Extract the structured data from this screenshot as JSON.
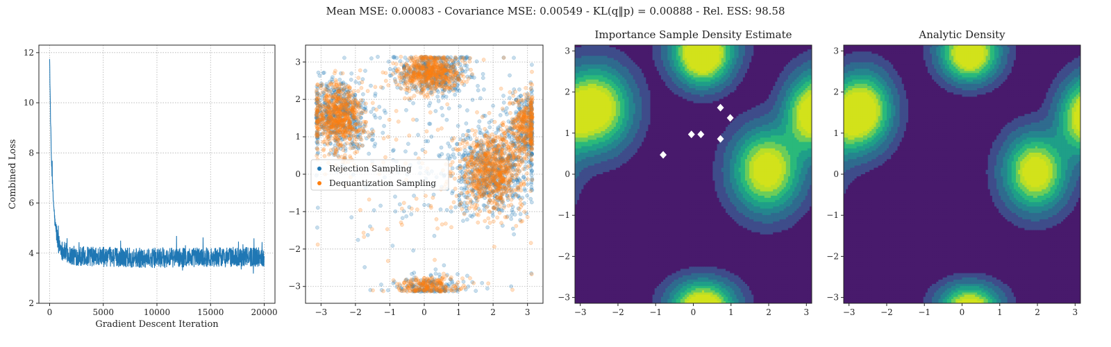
{
  "suptitle": "Mean MSE: 0.00083 - Covariance MSE: 0.00549 - KL(q‖p) = 0.00888 - Rel. ESS: 98.58",
  "colors": {
    "loss_line": "#1f77b4",
    "rejection": "#1f77b4",
    "dequantization": "#ff7f0e",
    "grid": "#b0b0b0",
    "density_levels": [
      "#481a6c",
      "#3e4c8a",
      "#2f6b8e",
      "#25858e",
      "#1f9f88",
      "#2ab97b",
      "#6ccd59",
      "#b8de29",
      "#d2e21b"
    ],
    "markers": "#ffffff"
  },
  "chart_data": [
    {
      "type": "line",
      "title": "",
      "xlabel": "Gradient Descent Iteration",
      "ylabel": "Combined Loss",
      "xlim": [
        -1000,
        21000
      ],
      "ylim": [
        2,
        12.3
      ],
      "xticks": [
        0,
        5000,
        10000,
        15000,
        20000
      ],
      "yticks": [
        2,
        4,
        6,
        8,
        10,
        12
      ],
      "grid": true,
      "series": [
        {
          "summary_points": [
            [
              0,
              11.8
            ],
            [
              60,
              10.0
            ],
            [
              150,
              8.0
            ],
            [
              300,
              6.4
            ],
            [
              500,
              5.2
            ],
            [
              800,
              4.4
            ],
            [
              1200,
              4.1
            ],
            [
              2000,
              3.9
            ],
            [
              5000,
              3.85
            ],
            [
              10000,
              3.8
            ],
            [
              15000,
              3.85
            ],
            [
              20000,
              3.85
            ]
          ],
          "noise_band": 0.8
        }
      ]
    },
    {
      "type": "scatter",
      "title": "",
      "xlim": [
        -3.45,
        3.45
      ],
      "ylim": [
        -3.45,
        3.45
      ],
      "xticks": [
        -3,
        -2,
        -1,
        0,
        1,
        2,
        3
      ],
      "yticks": [
        -3,
        -2,
        -1,
        0,
        1,
        2,
        3
      ],
      "grid": true,
      "legend_position": "center-left",
      "series": [
        {
          "name": "Rejection Sampling",
          "clusters": [
            {
              "center": [
                -2.45,
                1.6
              ],
              "spread": [
                0.45,
                0.5
              ],
              "weight": 0.24
            },
            {
              "center": [
                0.25,
                2.7
              ],
              "spread": [
                0.55,
                0.3
              ],
              "weight": 0.2
            },
            {
              "center": [
                1.95,
                0.1
              ],
              "spread": [
                0.55,
                0.6
              ],
              "weight": 0.28
            },
            {
              "center": [
                2.95,
                1.3
              ],
              "spread": [
                0.3,
                0.5
              ],
              "weight": 0.12
            },
            {
              "center": [
                0.1,
                -3.0
              ],
              "spread": [
                0.55,
                0.15
              ],
              "weight": 0.08
            },
            {
              "center": [
                0.0,
                0.5
              ],
              "spread": [
                1.6,
                1.6
              ],
              "weight": 0.08
            }
          ]
        },
        {
          "name": "Dequantization Sampling",
          "clusters": [
            {
              "center": [
                -2.5,
                1.5
              ],
              "spread": [
                0.35,
                0.45
              ],
              "weight": 0.26
            },
            {
              "center": [
                0.2,
                2.7
              ],
              "spread": [
                0.45,
                0.25
              ],
              "weight": 0.22
            },
            {
              "center": [
                1.95,
                0.1
              ],
              "spread": [
                0.45,
                0.5
              ],
              "weight": 0.28
            },
            {
              "center": [
                2.95,
                1.3
              ],
              "spread": [
                0.25,
                0.45
              ],
              "weight": 0.12
            },
            {
              "center": [
                0.1,
                -3.0
              ],
              "spread": [
                0.45,
                0.12
              ],
              "weight": 0.08
            },
            {
              "center": [
                0.0,
                0.3
              ],
              "spread": [
                1.6,
                1.6
              ],
              "weight": 0.04
            }
          ]
        }
      ]
    },
    {
      "type": "heatmap",
      "title": "Importance Sample Density Estimate",
      "xlim": [
        -3.14159,
        3.14159
      ],
      "ylim": [
        -3.14159,
        3.14159
      ],
      "xticks": [
        -3,
        -2,
        -1,
        0,
        1,
        2,
        3
      ],
      "yticks": [
        -3,
        -2,
        -1,
        0,
        1,
        2,
        3
      ],
      "components": [
        {
          "center": [
            -2.55,
            1.6
          ],
          "sigma": [
            0.55,
            0.6
          ],
          "weight": 1.0
        },
        {
          "center": [
            0.25,
            2.75
          ],
          "sigma": [
            0.45,
            0.4
          ],
          "weight": 0.9
        },
        {
          "center": [
            1.95,
            0.1
          ],
          "sigma": [
            0.55,
            0.6
          ],
          "weight": 1.0
        },
        {
          "center": [
            3.0,
            1.4
          ],
          "sigma": [
            0.4,
            0.55
          ],
          "weight": 0.6
        },
        {
          "center": [
            0.25,
            -3.1
          ],
          "sigma": [
            0.55,
            0.35
          ],
          "weight": 0.6
        }
      ],
      "markers": [
        [
          -0.8,
          0.47
        ],
        [
          -0.05,
          0.97
        ],
        [
          0.2,
          0.97
        ],
        [
          0.72,
          1.62
        ],
        [
          0.98,
          1.37
        ],
        [
          0.72,
          0.86
        ]
      ]
    },
    {
      "type": "heatmap",
      "title": "Analytic Density",
      "xlim": [
        -3.14159,
        3.14159
      ],
      "ylim": [
        -3.14159,
        3.14159
      ],
      "xticks": [
        -3,
        -2,
        -1,
        0,
        1,
        2,
        3
      ],
      "yticks": [
        -3,
        -2,
        -1,
        0,
        1,
        2,
        3
      ],
      "components": [
        {
          "center": [
            -2.6,
            1.55
          ],
          "sigma": [
            0.45,
            0.55
          ],
          "weight": 1.0
        },
        {
          "center": [
            0.2,
            2.78
          ],
          "sigma": [
            0.45,
            0.35
          ],
          "weight": 0.85
        },
        {
          "center": [
            1.95,
            0.05
          ],
          "sigma": [
            0.5,
            0.55
          ],
          "weight": 1.0
        },
        {
          "center": [
            3.1,
            1.3
          ],
          "sigma": [
            0.4,
            0.55
          ],
          "weight": 0.55
        },
        {
          "center": [
            0.2,
            -3.1
          ],
          "sigma": [
            0.5,
            0.3
          ],
          "weight": 0.5
        }
      ],
      "markers": []
    }
  ]
}
